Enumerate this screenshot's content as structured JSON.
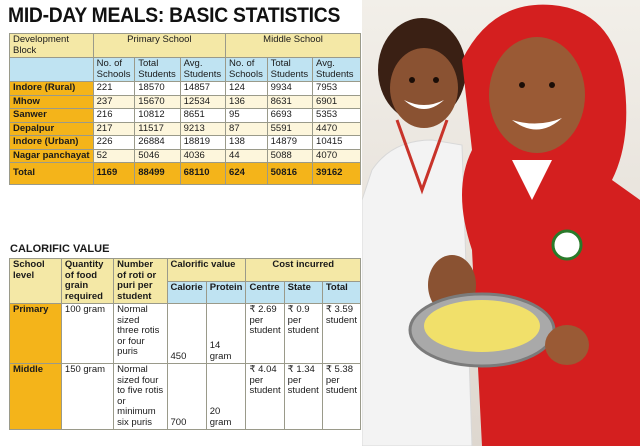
{
  "title": "MID-DAY MEALS: BASIC STATISTICS",
  "stats": {
    "col_block": "Development Block",
    "col_primary": "Primary School",
    "col_middle": "Middle School",
    "sub_headers": [
      "No. of Schools",
      "Total Students",
      "Avg. Students",
      "No. of Schools",
      "Total Students",
      "Avg. Students"
    ],
    "rows": [
      {
        "name": "Indore (Rural)",
        "values": [
          "221",
          "18570",
          "14857",
          "124",
          "9934",
          "7953"
        ]
      },
      {
        "name": "Mhow",
        "values": [
          "237",
          "15670",
          "12534",
          "136",
          "8631",
          "6901"
        ]
      },
      {
        "name": "Sanwer",
        "values": [
          "216",
          "10812",
          "8651",
          "95",
          "6693",
          "5353"
        ]
      },
      {
        "name": "Depalpur",
        "values": [
          "217",
          "11517",
          "9213",
          "87",
          "5591",
          "4470"
        ]
      },
      {
        "name": "Indore (Urban)",
        "values": [
          "226",
          "26884",
          "18819",
          "138",
          "14879",
          "10415"
        ]
      },
      {
        "name": "Nagar panchayat",
        "values": [
          "52",
          "5046",
          "4036",
          "44",
          "5088",
          "4070"
        ]
      }
    ],
    "total": {
      "name": "Total",
      "values": [
        "1169",
        "88499",
        "68110",
        "624",
        "50816",
        "39162"
      ]
    }
  },
  "calorific": {
    "section_title": "CALORIFIC VALUE",
    "headers": {
      "level": "School level",
      "quantity": "Quantity of food grain required",
      "roti": "Number of roti or puri per student",
      "calorific": "Calorific value",
      "cost": "Cost incurred"
    },
    "sub_headers": [
      "Calorie",
      "Protein",
      "Centre",
      "State",
      "Total"
    ],
    "rows": [
      {
        "level": "Primary",
        "quantity": "100 gram",
        "roti": "Normal sized three rotis or four puris",
        "calorie": "450",
        "protein": "14 gram",
        "centre": "₹ 2.69 per student",
        "state": "₹ 0.9 per student",
        "total": "₹ 3.59 student"
      },
      {
        "level": "Middle",
        "quantity": "150 gram",
        "roti": "Normal sized four to five rotis or minimum six puris",
        "calorie": "700",
        "protein": "20 gram",
        "centre": "₹ 4.04 per student",
        "state": "₹ 1.34 per student",
        "total": "₹ 5.38 per student"
      }
    ]
  },
  "colors": {
    "accent": "#f4b41a",
    "header": "#f4e8a6",
    "subheader": "#bfe3f2"
  }
}
